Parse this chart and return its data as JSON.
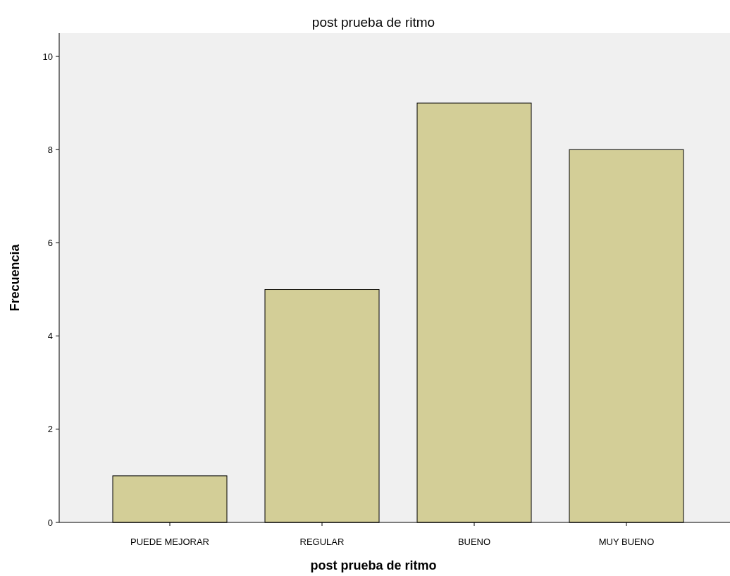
{
  "chart_data": {
    "type": "bar",
    "title": "post prueba de ritmo",
    "xlabel": "post prueba de ritmo",
    "ylabel": "Frecuencia",
    "categories": [
      "PUEDE MEJORAR",
      "REGULAR",
      "BUENO",
      "MUY BUENO"
    ],
    "values": [
      1,
      5,
      9,
      8
    ],
    "color": "#d3ce97",
    "ylim": [
      0,
      10.5
    ],
    "yticks": [
      0,
      2,
      4,
      6,
      8,
      10
    ],
    "grid": false
  }
}
